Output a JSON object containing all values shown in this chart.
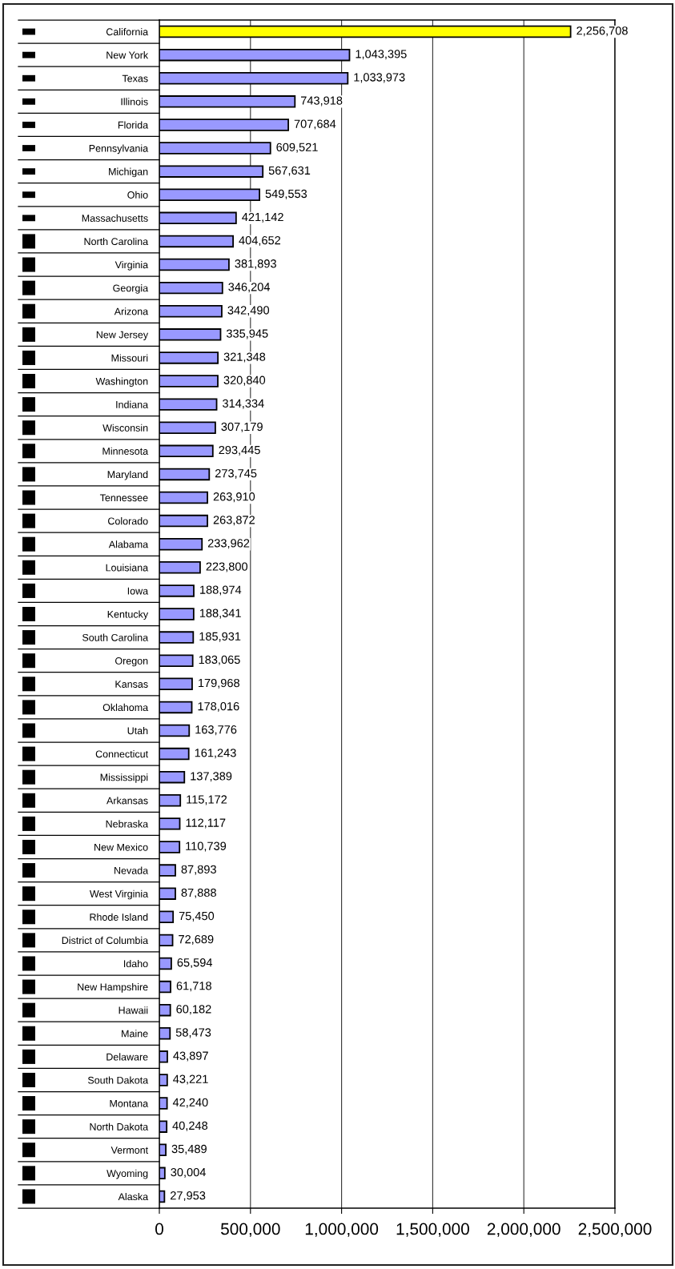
{
  "chart_data": {
    "type": "bar",
    "orientation": "horizontal",
    "categories": [
      "California",
      "New York",
      "Texas",
      "Illinois",
      "Florida",
      "Pennsylvania",
      "Michigan",
      "Ohio",
      "Massachusetts",
      "North Carolina",
      "Virginia",
      "Georgia",
      "Arizona",
      "New Jersey",
      "Missouri",
      "Washington",
      "Indiana",
      "Wisconsin",
      "Minnesota",
      "Maryland",
      "Tennessee",
      "Colorado",
      "Alabama",
      "Louisiana",
      "Iowa",
      "Kentucky",
      "South Carolina",
      "Oregon",
      "Kansas",
      "Oklahoma",
      "Utah",
      "Connecticut",
      "Mississippi",
      "Arkansas",
      "Nebraska",
      "New Mexico",
      "Nevada",
      "West Virginia",
      "Rhode Island",
      "District of Columbia",
      "Idaho",
      "New Hampshire",
      "Hawaii",
      "Maine",
      "Delaware",
      "South Dakota",
      "Montana",
      "North Dakota",
      "Vermont",
      "Wyoming",
      "Alaska"
    ],
    "values": [
      2256708,
      1043395,
      1033973,
      743918,
      707684,
      609521,
      567631,
      549553,
      421142,
      404652,
      381893,
      346204,
      342490,
      335945,
      321348,
      320840,
      314334,
      307179,
      293445,
      273745,
      263910,
      263872,
      233962,
      223800,
      188974,
      188341,
      185931,
      183065,
      179968,
      178016,
      163776,
      161243,
      137389,
      115172,
      112117,
      110739,
      87893,
      87888,
      75450,
      72689,
      65594,
      61718,
      60182,
      58473,
      43897,
      43221,
      42240,
      40248,
      35489,
      30004,
      27953
    ],
    "value_labels": [
      "2,256,708",
      "1,043,395",
      "1,033,973",
      "743,918",
      "707,684",
      "609,521",
      "567,631",
      "549,553",
      "421,142",
      "404,652",
      "381,893",
      "346,204",
      "342,490",
      "335,945",
      "321,348",
      "320,840",
      "314,334",
      "307,179",
      "293,445",
      "273,745",
      "263,910",
      "263,872",
      "233,962",
      "223,800",
      "188,974",
      "188,341",
      "185,931",
      "183,065",
      "179,968",
      "178,016",
      "163,776",
      "161,243",
      "137,389",
      "115,172",
      "112,117",
      "110,739",
      "87,893",
      "87,888",
      "75,450",
      "72,689",
      "65,594",
      "61,718",
      "60,182",
      "58,473",
      "43,897",
      "43,221",
      "42,240",
      "40,248",
      "35,489",
      "30,004",
      "27,953"
    ],
    "colors": [
      "#ffff00",
      "#9999ff",
      "#9999ff",
      "#9999ff",
      "#9999ff",
      "#9999ff",
      "#9999ff",
      "#9999ff",
      "#9999ff",
      "#9999ff",
      "#9999ff",
      "#9999ff",
      "#9999ff",
      "#9999ff",
      "#9999ff",
      "#9999ff",
      "#9999ff",
      "#9999ff",
      "#9999ff",
      "#9999ff",
      "#9999ff",
      "#9999ff",
      "#9999ff",
      "#9999ff",
      "#9999ff",
      "#9999ff",
      "#9999ff",
      "#9999ff",
      "#9999ff",
      "#9999ff",
      "#9999ff",
      "#9999ff",
      "#9999ff",
      "#9999ff",
      "#9999ff",
      "#9999ff",
      "#9999ff",
      "#9999ff",
      "#9999ff",
      "#9999ff",
      "#9999ff",
      "#9999ff",
      "#9999ff",
      "#9999ff",
      "#9999ff",
      "#9999ff",
      "#9999ff",
      "#9999ff",
      "#9999ff",
      "#9999ff",
      "#9999ff"
    ],
    "xlim": [
      0,
      2500000
    ],
    "xticks": [
      0,
      {
        "value": 500000,
        "label": "500,000"
      },
      {
        "value": 1000000,
        "label": "1,000,000"
      },
      {
        "value": 1500000,
        "label": "1,500,000"
      },
      {
        "value": 2000000,
        "label": "2,000,000"
      },
      {
        "value": 2500000,
        "label": "2,500,000"
      }
    ],
    "grid": "x"
  }
}
